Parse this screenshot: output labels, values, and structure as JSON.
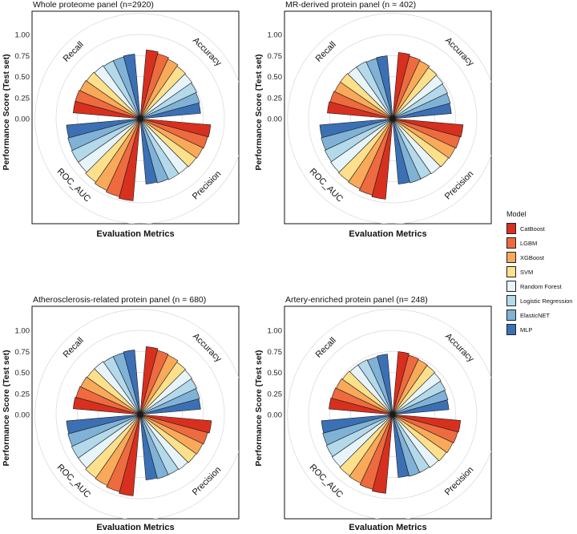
{
  "chart_data": {
    "type": "polar-bar",
    "legend": {
      "title": "Model",
      "placement": "right",
      "items": [
        {
          "name": "CatBoost",
          "color": "#D7301F"
        },
        {
          "name": "LGBM",
          "color": "#EE6A3F"
        },
        {
          "name": "XGBoost",
          "color": "#F9A95A"
        },
        {
          "name": "SVM",
          "color": "#FDE08B"
        },
        {
          "name": "Random Forest",
          "color": "#E7F4F9"
        },
        {
          "name": "Logistic Regression",
          "color": "#B3D9EA"
        },
        {
          "name": "ElasticNET",
          "color": "#7FB2D6"
        },
        {
          "name": "MLP",
          "color": "#3C70B5"
        }
      ]
    },
    "metrics": [
      "Accuracy",
      "Precision",
      "ROC_AUC",
      "Recall"
    ],
    "ylim": [
      0,
      1.25
    ],
    "yticks": [
      "0.00",
      "0.25",
      "0.50",
      "0.75",
      "1.00"
    ],
    "panels": [
      {
        "title": "Whole proteome panel (n=2920)",
        "xlabel": "Evaluation Metrics",
        "ylabel": "Performance Score (Test set)",
        "values": {
          "Accuracy": [
            0.82,
            0.8,
            0.78,
            0.76,
            0.75,
            0.74,
            0.73,
            0.72
          ],
          "Precision": [
            0.84,
            0.83,
            0.82,
            0.81,
            0.8,
            0.8,
            0.79,
            0.78
          ],
          "ROC_AUC": [
            0.98,
            0.96,
            0.94,
            0.92,
            0.9,
            0.9,
            0.89,
            0.88
          ],
          "Recall": [
            0.8,
            0.8,
            0.79,
            0.78,
            0.77,
            0.76,
            0.76,
            0.77
          ]
        }
      },
      {
        "title": "MR-derived protein panel (n = 402)",
        "xlabel": "Evaluation Metrics",
        "ylabel": "Performance Score (Test set)",
        "values": {
          "Accuracy": [
            0.79,
            0.77,
            0.76,
            0.74,
            0.73,
            0.72,
            0.71,
            0.7
          ],
          "Precision": [
            0.84,
            0.83,
            0.82,
            0.81,
            0.8,
            0.79,
            0.79,
            0.78
          ],
          "ROC_AUC": [
            0.96,
            0.94,
            0.92,
            0.91,
            0.9,
            0.89,
            0.88,
            0.87
          ],
          "Recall": [
            0.78,
            0.77,
            0.76,
            0.76,
            0.75,
            0.75,
            0.74,
            0.75
          ]
        }
      },
      {
        "title": "Atherosclerosis-related protein panel (n = 680)",
        "xlabel": "Evaluation Metrics",
        "ylabel": "Performance Score (Test set)",
        "values": {
          "Accuracy": [
            0.81,
            0.79,
            0.78,
            0.76,
            0.75,
            0.74,
            0.73,
            0.72
          ],
          "Precision": [
            0.85,
            0.83,
            0.82,
            0.81,
            0.8,
            0.79,
            0.79,
            0.78
          ],
          "ROC_AUC": [
            0.97,
            0.95,
            0.93,
            0.92,
            0.9,
            0.9,
            0.89,
            0.88
          ],
          "Recall": [
            0.8,
            0.79,
            0.78,
            0.77,
            0.77,
            0.76,
            0.76,
            0.77
          ]
        }
      },
      {
        "title": "Artery-enriched protein panel (n= 248)",
        "xlabel": "Evaluation Metrics",
        "ylabel": "Performance Score (Test set)",
        "values": {
          "Accuracy": [
            0.75,
            0.73,
            0.72,
            0.71,
            0.7,
            0.69,
            0.68,
            0.67
          ],
          "Precision": [
            0.81,
            0.8,
            0.79,
            0.78,
            0.77,
            0.76,
            0.76,
            0.75
          ],
          "ROC_AUC": [
            0.94,
            0.92,
            0.9,
            0.89,
            0.88,
            0.87,
            0.86,
            0.85
          ],
          "Recall": [
            0.76,
            0.75,
            0.74,
            0.73,
            0.72,
            0.72,
            0.71,
            0.72
          ]
        }
      }
    ]
  }
}
